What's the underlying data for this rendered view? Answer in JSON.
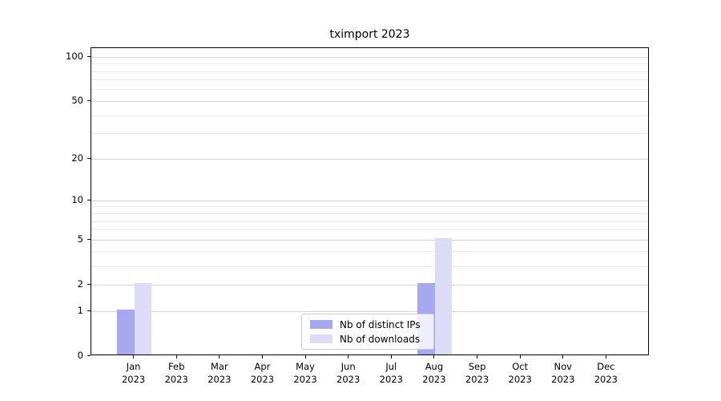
{
  "figure": {
    "background": "#ffffff",
    "spine_color": "#000000",
    "major_grid_color": "#d4d4d4",
    "minor_grid_color": "#ececec",
    "tick_color": "#000000"
  },
  "chart_data": {
    "type": "bar",
    "title": "tximport 2023",
    "categories": [
      "Jan",
      "Feb",
      "Mar",
      "Apr",
      "May",
      "Jun",
      "Jul",
      "Aug",
      "Sep",
      "Oct",
      "Nov",
      "Dec"
    ],
    "category_year": "2023",
    "series": [
      {
        "name": "Nb of distinct IPs",
        "color": "#a8a8f0",
        "values": [
          1,
          0,
          0,
          0,
          0,
          0,
          0,
          2,
          0,
          0,
          0,
          0
        ]
      },
      {
        "name": "Nb of downloads",
        "color": "#dcdcf8",
        "values": [
          2,
          0,
          0,
          0,
          0,
          0,
          0,
          5,
          0,
          0,
          0,
          0
        ]
      }
    ],
    "xlabel": "",
    "ylabel": "",
    "yscale": "log1p",
    "ylim": [
      0,
      115
    ],
    "yticks": [
      0,
      1,
      2,
      5,
      10,
      20,
      50,
      100
    ],
    "yticks_minor": [
      3,
      4,
      6,
      7,
      8,
      9,
      30,
      40,
      60,
      70,
      80,
      90
    ],
    "grid": true,
    "legend_position": "inset lower center"
  }
}
